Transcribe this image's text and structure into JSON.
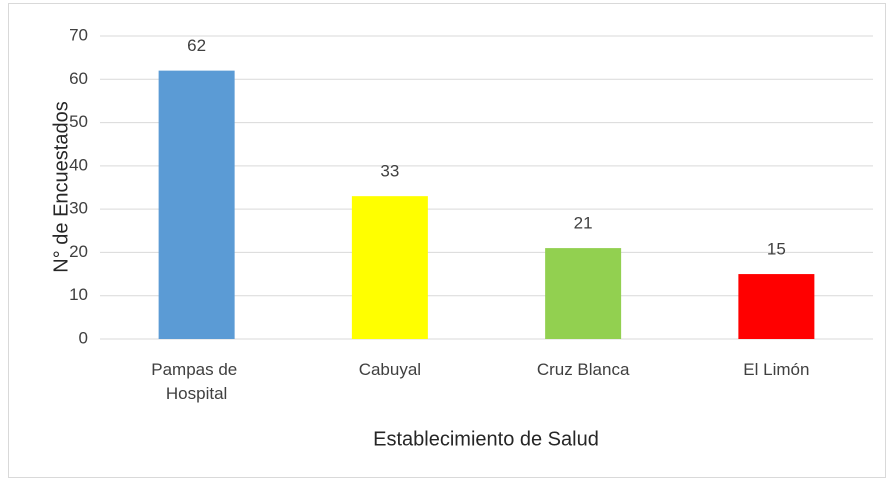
{
  "chart_data": {
    "type": "bar",
    "categories": [
      "Pampas de Hospital",
      "Cabuyal",
      "Cruz Blanca",
      "El Limón"
    ],
    "values": [
      62,
      33,
      21,
      15
    ],
    "colors": [
      "#5b9bd5",
      "#ffff00",
      "#92d050",
      "#ff0000"
    ],
    "x_label": "Establecimiento de Salud",
    "y_label": "N° de Encuestados",
    "ylim": [
      0,
      70
    ],
    "yticks": [
      0,
      10,
      20,
      30,
      40,
      50,
      60,
      70
    ],
    "grid": true
  }
}
